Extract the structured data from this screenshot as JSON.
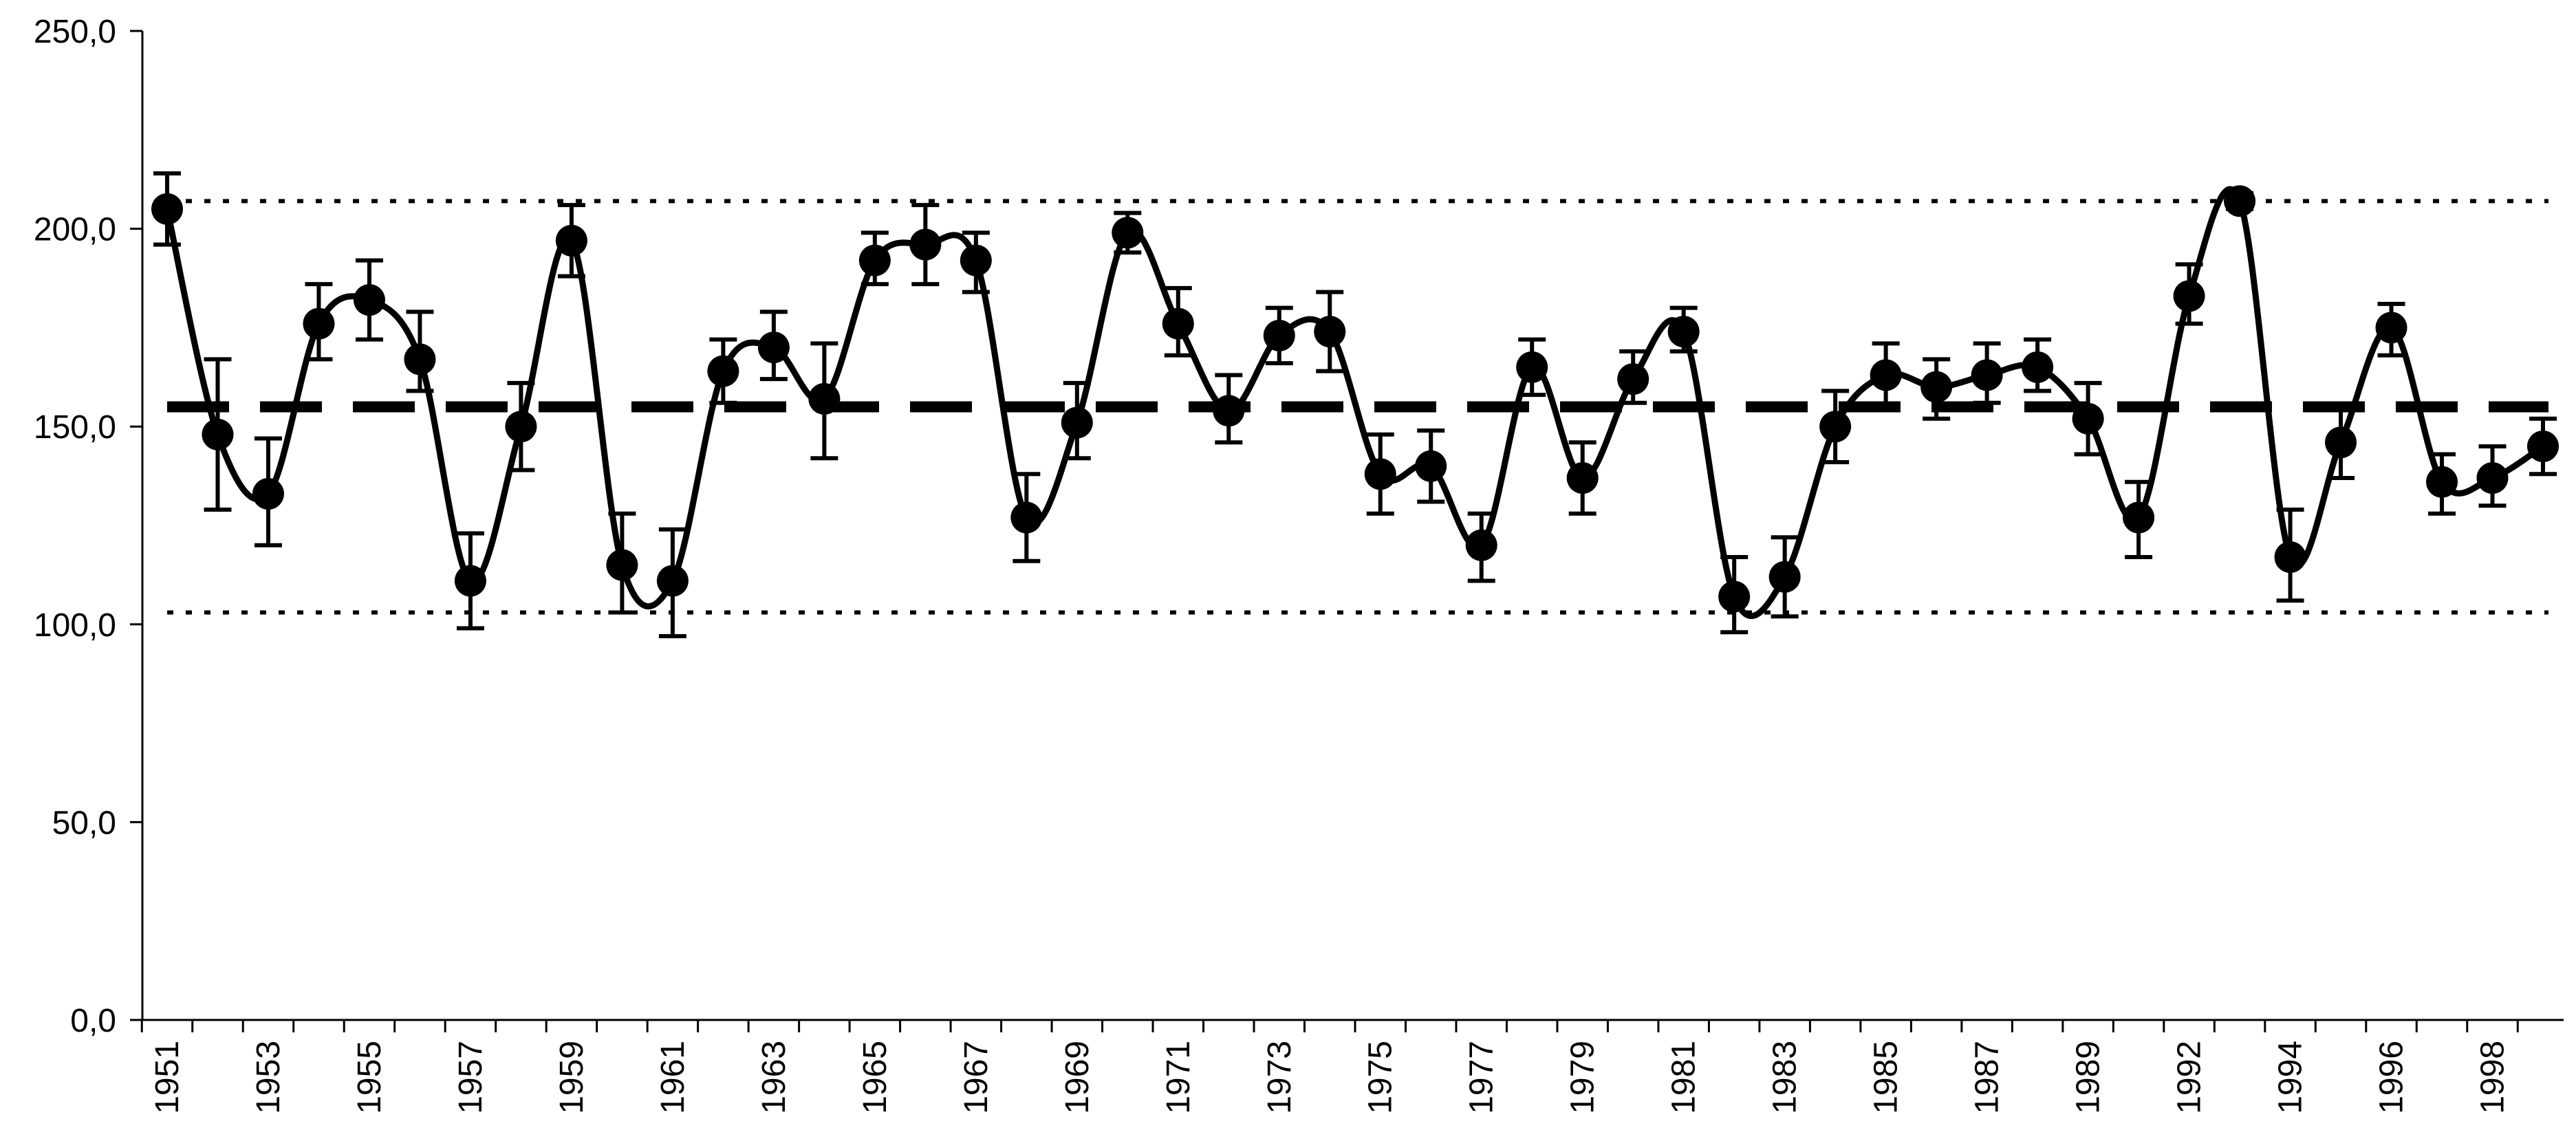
{
  "chart_data": {
    "type": "line",
    "title": "",
    "xlabel": "",
    "ylabel": "",
    "ylim": [
      0,
      250
    ],
    "y_ticks": [
      "0,0",
      "50,0",
      "100,0",
      "150,0",
      "200,0",
      "250,0"
    ],
    "y_tick_values": [
      0,
      50,
      100,
      150,
      200,
      250
    ],
    "x": [
      1951,
      1952,
      1953,
      1954,
      1955,
      1956,
      1957,
      1958,
      1959,
      1960,
      1961,
      1962,
      1963,
      1964,
      1965,
      1966,
      1967,
      1968,
      1969,
      1970,
      1971,
      1972,
      1973,
      1974,
      1975,
      1976,
      1977,
      1978,
      1979,
      1980,
      1981,
      1982,
      1983,
      1984,
      1985,
      1986,
      1987,
      1988,
      1989,
      1990,
      1992,
      1993,
      1994,
      1995,
      1996,
      1997,
      1998,
      1999
    ],
    "x_tick_labels": [
      "1951",
      "1953",
      "1955",
      "1957",
      "1959",
      "1961",
      "1963",
      "1965",
      "1967",
      "1969",
      "1971",
      "1973",
      "1975",
      "1977",
      "1979",
      "1981",
      "1983",
      "1985",
      "1987",
      "1989",
      "1992",
      "1994",
      "1996",
      "1998"
    ],
    "x_tick_label_indices": [
      0,
      2,
      4,
      6,
      8,
      10,
      12,
      14,
      16,
      18,
      20,
      22,
      24,
      26,
      28,
      30,
      32,
      34,
      36,
      38,
      40,
      42,
      44,
      46
    ],
    "series": [
      {
        "values": [
          205,
          148,
          133,
          176,
          182,
          167,
          111,
          150,
          197,
          115,
          111,
          164,
          170,
          157,
          192,
          196,
          192,
          127,
          151,
          199,
          176,
          154,
          173,
          174,
          138,
          140,
          120,
          165,
          137,
          162,
          174,
          107,
          112,
          150,
          163,
          160,
          163,
          165,
          152,
          127,
          183,
          207,
          117,
          146,
          175,
          136,
          137,
          145
        ],
        "err_low": [
          196,
          129,
          120,
          167,
          172,
          159,
          99,
          139,
          188,
          103,
          97,
          156,
          162,
          142,
          186,
          186,
          184,
          116,
          142,
          194,
          168,
          146,
          166,
          164,
          128,
          131,
          111,
          158,
          128,
          156,
          169,
          98,
          102,
          141,
          155,
          152,
          156,
          159,
          143,
          117,
          176,
          205,
          106,
          137,
          168,
          128,
          130,
          138
        ],
        "err_high": [
          214,
          167,
          147,
          186,
          192,
          179,
          123,
          161,
          206,
          128,
          124,
          172,
          179,
          171,
          199,
          206,
          199,
          138,
          161,
          204,
          185,
          163,
          180,
          184,
          148,
          149,
          128,
          172,
          146,
          169,
          180,
          117,
          122,
          159,
          171,
          167,
          171,
          172,
          161,
          136,
          191,
          209,
          129,
          155,
          181,
          143,
          145,
          152
        ]
      }
    ],
    "reference_lines": {
      "mean": 155,
      "upper": 207,
      "lower": 103
    },
    "grid": false,
    "legend": "none"
  }
}
